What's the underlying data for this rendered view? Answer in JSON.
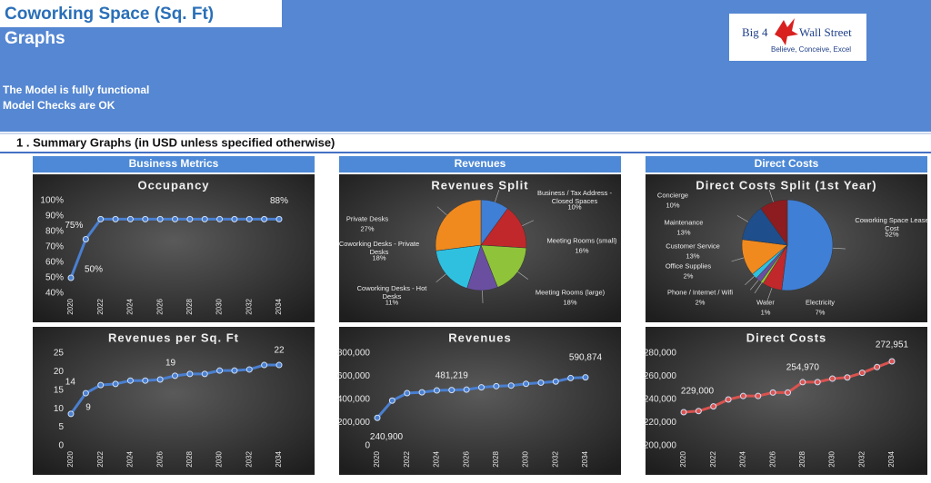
{
  "header": {
    "title": "Coworking Space (Sq. Ft)",
    "subtitle": "Graphs",
    "status": [
      "The Model is fully functional",
      "Model Checks are OK"
    ],
    "logo": {
      "name": [
        "Big 4",
        "Wall Street"
      ],
      "tagline": "Believe, Conceive, Excel"
    }
  },
  "section": "1 .  Summary Graphs (in USD unless specified otherwise)",
  "panels": [
    "Business Metrics",
    "Revenues",
    "Direct Costs"
  ],
  "chart_data": [
    {
      "type": "line",
      "title": "Occupancy",
      "categories": [
        "2020",
        null,
        "2022",
        null,
        "2024",
        null,
        "2026",
        null,
        "2028",
        null,
        "2030",
        null,
        "2032",
        null,
        "2034"
      ],
      "series": [
        {
          "color": "#4a7fd0",
          "values": [
            50,
            75,
            88,
            88,
            88,
            88,
            88,
            88,
            88,
            88,
            88,
            88,
            88,
            88,
            88
          ],
          "value_labels": [
            "50%",
            "75%",
            null,
            null,
            null,
            null,
            null,
            null,
            null,
            null,
            null,
            null,
            null,
            null,
            "88%"
          ]
        }
      ],
      "ylim": [
        40,
        100
      ],
      "yticks": [
        {
          "value": 40,
          "label": "40%"
        },
        {
          "value": 50,
          "label": "50%"
        },
        {
          "value": 60,
          "label": "60%"
        },
        {
          "value": 70,
          "label": "70%"
        },
        {
          "value": 80,
          "label": "80%"
        },
        {
          "value": 90,
          "label": "90%"
        },
        {
          "value": 100,
          "label": "100%"
        }
      ]
    },
    {
      "type": "pie",
      "title": "Revenues Split",
      "categories": [
        "Business / Tax Address - Closed Spaces",
        "Meeting Rooms (small)",
        "Meeting Rooms (large)",
        "Coworking Desks - Hot Desks",
        "Coworking Desks - Private Desks",
        "Private Desks"
      ],
      "values": [
        10,
        16,
        18,
        11,
        18,
        27
      ],
      "value_labels": [
        "10%",
        "16%",
        "18%",
        "11%",
        "18%",
        "27%"
      ],
      "colors": [
        "#3f7fd6",
        "#c0282b",
        "#8fc43a",
        "#6a4fa0",
        "#2fc0e0",
        "#f08a1f"
      ]
    },
    {
      "type": "pie",
      "title": "Direct Costs Split (1st Year)",
      "categories": [
        "Coworking Space Lease Cost",
        "Electricity",
        "Water",
        "Phone / Internet / Wifi",
        "Office Supplies",
        "Customer Service",
        "Maintenance",
        "Concierge"
      ],
      "values": [
        52,
        7,
        1,
        2,
        2,
        13,
        13,
        10
      ],
      "value_labels": [
        "52%",
        "7%",
        "1%",
        "2%",
        "2%",
        "13%",
        "13%",
        "10%"
      ],
      "colors": [
        "#3f7fd6",
        "#c0282b",
        "#8fc43a",
        "#6a4fa0",
        "#2fc0e0",
        "#f08a1f",
        "#1f4e8c",
        "#8c1c1f"
      ]
    },
    {
      "type": "line",
      "title": "Revenues per Sq. Ft",
      "categories": [
        "2020",
        null,
        "2022",
        null,
        "2024",
        null,
        "2026",
        null,
        "2028",
        null,
        "2030",
        null,
        "2032",
        null,
        "2034"
      ],
      "series": [
        {
          "color": "#4a7fd0",
          "values": [
            8.6,
            14.2,
            16.4,
            16.7,
            17.6,
            17.6,
            17.9,
            18.9,
            19.4,
            19.4,
            20.3,
            20.3,
            20.6,
            21.8,
            21.8
          ],
          "value_labels": [
            "9",
            "14",
            null,
            null,
            null,
            null,
            null,
            "19",
            null,
            null,
            null,
            null,
            null,
            null,
            "22"
          ]
        }
      ],
      "ylim": [
        0,
        25
      ],
      "yticks": [
        0,
        5,
        10,
        15,
        20,
        25
      ]
    },
    {
      "type": "line",
      "title": "Revenues",
      "categories": [
        "2020",
        null,
        "2022",
        null,
        "2024",
        null,
        "2026",
        null,
        "2028",
        null,
        "2030",
        null,
        "2032",
        null,
        "2034"
      ],
      "series": [
        {
          "color": "#4a7fd0",
          "values": [
            240900,
            390000,
            455000,
            462000,
            478000,
            481219,
            485000,
            505000,
            515000,
            520000,
            535000,
            545000,
            555000,
            585000,
            590874
          ],
          "value_labels": [
            "240,900",
            null,
            null,
            null,
            null,
            "481,219",
            null,
            null,
            null,
            null,
            null,
            null,
            null,
            null,
            "590,874"
          ]
        }
      ],
      "ylim": [
        0,
        800000
      ],
      "yticks": [
        0,
        {
          "value": 200000,
          "label": "200,000"
        },
        {
          "value": 400000,
          "label": "400,000"
        },
        {
          "value": 600000,
          "label": "600,000"
        },
        {
          "value": 800000,
          "label": "800,000"
        }
      ]
    },
    {
      "type": "line",
      "title": "Direct Costs",
      "categories": [
        "2020",
        null,
        "2022",
        null,
        "2024",
        null,
        "2026",
        null,
        "2028",
        null,
        "2030",
        null,
        "2032",
        null,
        "2034"
      ],
      "series": [
        {
          "color": "#d9534f",
          "values": [
            229000,
            230000,
            234000,
            240000,
            243000,
            243000,
            246000,
            246000,
            254970,
            255000,
            258000,
            259000,
            263000,
            268000,
            272951
          ],
          "value_labels": [
            "229,000",
            null,
            null,
            null,
            null,
            null,
            null,
            null,
            "254,970",
            null,
            null,
            null,
            null,
            null,
            "272,951"
          ]
        }
      ],
      "ylim": [
        200000,
        280000
      ],
      "yticks": [
        {
          "value": 200000,
          "label": "200,000"
        },
        {
          "value": 220000,
          "label": "220,000"
        },
        {
          "value": 240000,
          "label": "240,000"
        },
        {
          "value": 260000,
          "label": "260,000"
        },
        {
          "value": 280000,
          "label": "280,000"
        }
      ]
    }
  ]
}
